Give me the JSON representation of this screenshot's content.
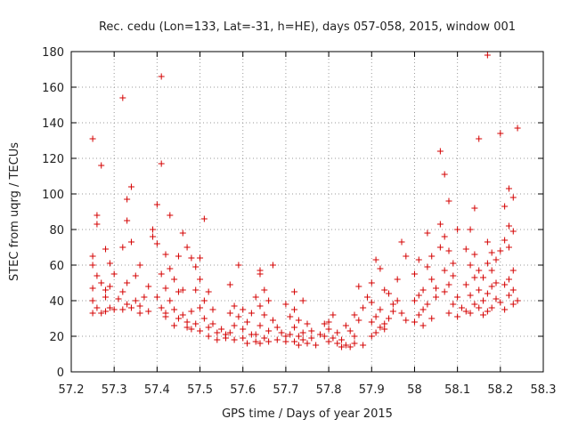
{
  "chart_data": {
    "type": "scatter",
    "title": "Rec. cedu (Lon=133, Lat=-31, h=HE), days 057-058, 2015, window 001",
    "xlabel": "GPS time / Days of year 2015",
    "ylabel": "STEC from uqrg / TECUs",
    "xlim": [
      57.2,
      58.3
    ],
    "ylim": [
      0,
      180
    ],
    "xticks": [
      "57.2",
      "57.3",
      "57.4",
      "57.5",
      "57.6",
      "57.7",
      "57.8",
      "57.9",
      "58",
      "58.1",
      "58.2",
      "58.3"
    ],
    "yticks": [
      "0",
      "20",
      "40",
      "60",
      "80",
      "100",
      "120",
      "140",
      "160",
      "180"
    ],
    "grid": true,
    "marker": "+",
    "color": "#d40000",
    "points": [
      [
        57.25,
        131
      ],
      [
        57.26,
        88
      ],
      [
        57.26,
        83
      ],
      [
        57.27,
        116
      ],
      [
        57.25,
        65
      ],
      [
        57.25,
        60
      ],
      [
        57.26,
        54
      ],
      [
        57.27,
        50
      ],
      [
        57.28,
        46
      ],
      [
        57.25,
        47
      ],
      [
        57.25,
        40
      ],
      [
        57.26,
        36
      ],
      [
        57.25,
        33
      ],
      [
        57.27,
        33
      ],
      [
        57.28,
        34
      ],
      [
        57.29,
        36
      ],
      [
        57.3,
        35
      ],
      [
        57.28,
        42
      ],
      [
        57.29,
        48
      ],
      [
        57.3,
        55
      ],
      [
        57.29,
        61
      ],
      [
        57.28,
        69
      ],
      [
        57.32,
        154
      ],
      [
        57.33,
        97
      ],
      [
        57.34,
        104
      ],
      [
        57.33,
        85
      ],
      [
        57.34,
        73
      ],
      [
        57.32,
        70
      ],
      [
        57.36,
        60
      ],
      [
        57.35,
        54
      ],
      [
        57.33,
        50
      ],
      [
        57.32,
        45
      ],
      [
        57.31,
        41
      ],
      [
        57.33,
        38
      ],
      [
        57.35,
        40
      ],
      [
        57.36,
        37
      ],
      [
        57.34,
        36
      ],
      [
        57.32,
        35
      ],
      [
        57.36,
        33
      ],
      [
        57.38,
        34
      ],
      [
        57.37,
        42
      ],
      [
        57.38,
        48
      ],
      [
        57.39,
        76
      ],
      [
        57.4,
        72
      ],
      [
        57.39,
        80
      ],
      [
        57.41,
        166
      ],
      [
        57.41,
        117
      ],
      [
        57.43,
        88
      ],
      [
        57.4,
        94
      ],
      [
        57.42,
        66
      ],
      [
        57.43,
        58
      ],
      [
        57.41,
        55
      ],
      [
        57.44,
        52
      ],
      [
        57.42,
        47
      ],
      [
        57.45,
        45
      ],
      [
        57.4,
        42
      ],
      [
        57.43,
        40
      ],
      [
        57.41,
        36
      ],
      [
        57.44,
        35
      ],
      [
        57.42,
        33
      ],
      [
        57.46,
        32
      ],
      [
        57.45,
        30
      ],
      [
        57.47,
        28
      ],
      [
        57.44,
        26
      ],
      [
        57.42,
        31
      ],
      [
        57.46,
        78
      ],
      [
        57.47,
        70
      ],
      [
        57.48,
        64
      ],
      [
        57.46,
        46
      ],
      [
        57.45,
        65
      ],
      [
        57.51,
        86
      ],
      [
        57.5,
        64
      ],
      [
        57.49,
        59
      ],
      [
        57.5,
        52
      ],
      [
        57.52,
        45
      ],
      [
        57.49,
        46
      ],
      [
        57.51,
        40
      ],
      [
        57.5,
        36
      ],
      [
        57.48,
        34
      ],
      [
        57.53,
        35
      ],
      [
        57.51,
        30
      ],
      [
        57.49,
        27
      ],
      [
        57.52,
        25
      ],
      [
        57.5,
        23
      ],
      [
        57.54,
        22
      ],
      [
        57.53,
        27
      ],
      [
        57.55,
        24
      ],
      [
        57.52,
        20
      ],
      [
        57.56,
        21
      ],
      [
        57.54,
        18
      ],
      [
        57.48,
        24
      ],
      [
        57.47,
        25
      ],
      [
        57.57,
        49
      ],
      [
        57.59,
        60
      ],
      [
        57.58,
        37
      ],
      [
        57.57,
        33
      ],
      [
        57.6,
        35
      ],
      [
        57.59,
        31
      ],
      [
        57.58,
        26
      ],
      [
        57.6,
        24
      ],
      [
        57.57,
        22
      ],
      [
        57.61,
        28
      ],
      [
        57.62,
        21
      ],
      [
        57.6,
        19
      ],
      [
        57.58,
        18
      ],
      [
        57.63,
        17
      ],
      [
        57.61,
        16
      ],
      [
        57.56,
        19
      ],
      [
        57.64,
        57
      ],
      [
        57.64,
        55
      ],
      [
        57.65,
        46
      ],
      [
        57.63,
        42
      ],
      [
        57.66,
        40
      ],
      [
        57.64,
        37
      ],
      [
        57.62,
        33
      ],
      [
        57.65,
        32
      ],
      [
        57.67,
        29
      ],
      [
        57.64,
        26
      ],
      [
        57.66,
        23
      ],
      [
        57.63,
        21
      ],
      [
        57.65,
        19
      ],
      [
        57.68,
        18
      ],
      [
        57.66,
        17
      ],
      [
        57.64,
        16
      ],
      [
        57.67,
        60
      ],
      [
        57.69,
        22
      ],
      [
        57.7,
        20
      ],
      [
        57.68,
        25
      ],
      [
        57.72,
        45
      ],
      [
        57.7,
        38
      ],
      [
        57.72,
        35
      ],
      [
        57.74,
        40
      ],
      [
        57.71,
        31
      ],
      [
        57.73,
        29
      ],
      [
        57.75,
        27
      ],
      [
        57.72,
        25
      ],
      [
        57.74,
        22
      ],
      [
        57.71,
        21
      ],
      [
        57.73,
        20
      ],
      [
        57.76,
        19
      ],
      [
        57.74,
        18
      ],
      [
        57.72,
        17
      ],
      [
        57.75,
        16
      ],
      [
        57.77,
        15
      ],
      [
        57.73,
        15
      ],
      [
        57.76,
        23
      ],
      [
        57.78,
        21
      ],
      [
        57.7,
        17
      ],
      [
        57.79,
        27
      ],
      [
        57.8,
        28
      ],
      [
        57.81,
        32
      ],
      [
        57.8,
        24
      ],
      [
        57.82,
        22
      ],
      [
        57.79,
        20
      ],
      [
        57.81,
        19
      ],
      [
        57.83,
        18
      ],
      [
        57.8,
        17
      ],
      [
        57.82,
        16
      ],
      [
        57.84,
        15
      ],
      [
        57.85,
        14
      ],
      [
        57.83,
        14
      ],
      [
        57.86,
        20
      ],
      [
        57.85,
        23
      ],
      [
        57.84,
        26
      ],
      [
        57.87,
        29
      ],
      [
        57.86,
        32
      ],
      [
        57.88,
        36
      ],
      [
        57.87,
        48
      ],
      [
        57.86,
        16
      ],
      [
        57.88,
        15
      ],
      [
        57.89,
        42
      ],
      [
        57.9,
        39
      ],
      [
        57.9,
        50
      ],
      [
        57.91,
        63
      ],
      [
        57.92,
        58
      ],
      [
        57.9,
        28
      ],
      [
        57.91,
        31
      ],
      [
        57.92,
        35
      ],
      [
        57.93,
        46
      ],
      [
        57.94,
        44
      ],
      [
        57.92,
        25
      ],
      [
        57.91,
        22
      ],
      [
        57.93,
        24
      ],
      [
        57.94,
        30
      ],
      [
        57.95,
        34
      ],
      [
        57.96,
        40
      ],
      [
        57.97,
        73
      ],
      [
        57.98,
        65
      ],
      [
        57.96,
        52
      ],
      [
        57.95,
        38
      ],
      [
        57.97,
        33
      ],
      [
        57.98,
        29
      ],
      [
        57.93,
        27
      ],
      [
        57.9,
        20
      ],
      [
        58.01,
        63
      ],
      [
        58.0,
        55
      ],
      [
        58.02,
        46
      ],
      [
        58.01,
        43
      ],
      [
        58.0,
        40
      ],
      [
        58.03,
        38
      ],
      [
        58.02,
        35
      ],
      [
        58.01,
        32
      ],
      [
        58.04,
        30
      ],
      [
        58.0,
        28
      ],
      [
        58.02,
        26
      ],
      [
        58.03,
        59
      ],
      [
        58.04,
        52
      ],
      [
        58.05,
        47
      ],
      [
        58.05,
        42
      ],
      [
        58.03,
        78
      ],
      [
        58.06,
        70
      ],
      [
        58.04,
        65
      ],
      [
        58.06,
        124
      ],
      [
        58.07,
        111
      ],
      [
        58.08,
        96
      ],
      [
        58.07,
        76
      ],
      [
        58.08,
        68
      ],
      [
        58.06,
        83
      ],
      [
        58.09,
        61
      ],
      [
        58.07,
        57
      ],
      [
        58.1,
        80
      ],
      [
        58.09,
        54
      ],
      [
        58.08,
        49
      ],
      [
        58.07,
        45
      ],
      [
        58.1,
        42
      ],
      [
        58.09,
        38
      ],
      [
        58.11,
        36
      ],
      [
        58.08,
        33
      ],
      [
        58.12,
        34
      ],
      [
        58.1,
        31
      ],
      [
        58.14,
        92
      ],
      [
        58.13,
        80
      ],
      [
        58.12,
        69
      ],
      [
        58.14,
        66
      ],
      [
        58.13,
        60
      ],
      [
        58.15,
        57
      ],
      [
        58.14,
        53
      ],
      [
        58.12,
        49
      ],
      [
        58.15,
        46
      ],
      [
        58.13,
        43
      ],
      [
        58.16,
        40
      ],
      [
        58.14,
        38
      ],
      [
        58.15,
        36
      ],
      [
        58.13,
        33
      ],
      [
        58.16,
        32
      ],
      [
        58.17,
        34
      ],
      [
        58.17,
        178
      ],
      [
        58.15,
        131
      ],
      [
        58.2,
        134
      ],
      [
        58.17,
        73
      ],
      [
        58.18,
        67
      ],
      [
        58.19,
        63
      ],
      [
        58.17,
        61
      ],
      [
        58.18,
        57
      ],
      [
        58.16,
        53
      ],
      [
        58.19,
        50
      ],
      [
        58.18,
        48
      ],
      [
        58.17,
        44
      ],
      [
        58.19,
        41
      ],
      [
        58.2,
        39
      ],
      [
        58.18,
        36
      ],
      [
        58.21,
        35
      ],
      [
        58.21,
        93
      ],
      [
        58.22,
        103
      ],
      [
        58.23,
        98
      ],
      [
        58.22,
        82
      ],
      [
        58.23,
        79
      ],
      [
        58.21,
        74
      ],
      [
        58.22,
        70
      ],
      [
        58.2,
        68
      ],
      [
        58.23,
        57
      ],
      [
        58.22,
        52
      ],
      [
        58.21,
        49
      ],
      [
        58.23,
        46
      ],
      [
        58.22,
        43
      ],
      [
        58.24,
        40
      ],
      [
        58.23,
        38
      ],
      [
        58.24,
        137
      ]
    ]
  }
}
